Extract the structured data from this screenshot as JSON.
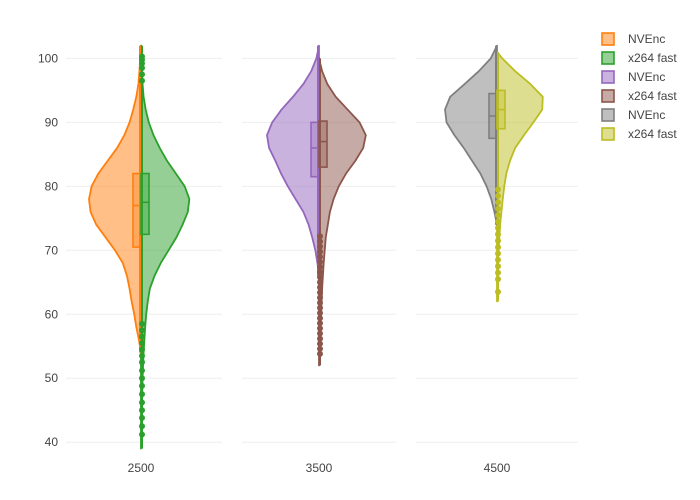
{
  "chart_data": {
    "type": "violin",
    "title": "",
    "xlabel": "",
    "ylabel": "",
    "ylim": [
      38,
      106
    ],
    "y_ticks": [
      40,
      50,
      60,
      70,
      80,
      90,
      100
    ],
    "grid": true,
    "legend_position": "top-right",
    "categories": [
      "2500",
      "3500",
      "4500"
    ],
    "series": [
      {
        "name": "NVEnc",
        "category": "2500",
        "side": "negative",
        "color": "#ff7f0e",
        "range": [
          54,
          102
        ],
        "box": {
          "q1": 70.5,
          "median": 77,
          "q3": 82
        },
        "density": [
          [
            54,
            0
          ],
          [
            56,
            0.04
          ],
          [
            58,
            0.09
          ],
          [
            60,
            0.13
          ],
          [
            62,
            0.18
          ],
          [
            64,
            0.22
          ],
          [
            66,
            0.27
          ],
          [
            68,
            0.35
          ],
          [
            70,
            0.5
          ],
          [
            72,
            0.68
          ],
          [
            74,
            0.86
          ],
          [
            76,
            0.97
          ],
          [
            78,
            1.0
          ],
          [
            80,
            0.95
          ],
          [
            82,
            0.82
          ],
          [
            84,
            0.64
          ],
          [
            86,
            0.46
          ],
          [
            88,
            0.32
          ],
          [
            90,
            0.22
          ],
          [
            92,
            0.15
          ],
          [
            94,
            0.09
          ],
          [
            96,
            0.05
          ],
          [
            98,
            0.03
          ],
          [
            100,
            0.015
          ],
          [
            102,
            0
          ]
        ],
        "outliers": []
      },
      {
        "name": "x264 fast",
        "category": "2500",
        "side": "positive",
        "color": "#2ca02c",
        "range": [
          39,
          102
        ],
        "box": {
          "q1": 72.5,
          "median": 77.5,
          "q3": 82
        },
        "density": [
          [
            39,
            0
          ],
          [
            42,
            0.01
          ],
          [
            46,
            0.02
          ],
          [
            50,
            0.03
          ],
          [
            54,
            0.05
          ],
          [
            58,
            0.08
          ],
          [
            60,
            0.1
          ],
          [
            62,
            0.13
          ],
          [
            64,
            0.17
          ],
          [
            66,
            0.26
          ],
          [
            68,
            0.38
          ],
          [
            70,
            0.53
          ],
          [
            72,
            0.68
          ],
          [
            74,
            0.8
          ],
          [
            76,
            0.9
          ],
          [
            78,
            0.93
          ],
          [
            80,
            0.84
          ],
          [
            82,
            0.67
          ],
          [
            84,
            0.5
          ],
          [
            86,
            0.36
          ],
          [
            88,
            0.24
          ],
          [
            90,
            0.15
          ],
          [
            92,
            0.09
          ],
          [
            94,
            0.05
          ],
          [
            96,
            0.03
          ],
          [
            98,
            0.015
          ],
          [
            100,
            0.008
          ],
          [
            102,
            0
          ]
        ],
        "outliers": [
          41.2,
          42.5,
          43.8,
          45,
          46.2,
          47.5,
          48.8,
          50,
          51.2,
          52.5,
          53.5,
          54.5,
          55.5,
          56.5,
          57.5,
          58.5,
          96.5,
          97.5,
          98.5,
          99.2,
          99.8,
          100.3
        ]
      },
      {
        "name": "NVEnc",
        "category": "3500",
        "side": "negative",
        "color": "#9467bd",
        "range": [
          66,
          102
        ],
        "box": {
          "q1": 81.5,
          "median": 86,
          "q3": 90
        },
        "density": [
          [
            66,
            0
          ],
          [
            68,
            0.03
          ],
          [
            70,
            0.07
          ],
          [
            72,
            0.13
          ],
          [
            74,
            0.2
          ],
          [
            76,
            0.3
          ],
          [
            78,
            0.45
          ],
          [
            80,
            0.6
          ],
          [
            82,
            0.73
          ],
          [
            84,
            0.84
          ],
          [
            86,
            0.96
          ],
          [
            88,
            1.0
          ],
          [
            90,
            0.9
          ],
          [
            92,
            0.72
          ],
          [
            94,
            0.5
          ],
          [
            96,
            0.3
          ],
          [
            98,
            0.15
          ],
          [
            100,
            0.05
          ],
          [
            102,
            0
          ]
        ],
        "outliers": []
      },
      {
        "name": "x264 fast",
        "category": "3500",
        "side": "positive",
        "color": "#8c564b",
        "range": [
          52,
          100
        ],
        "box": {
          "q1": 83,
          "median": 87,
          "q3": 90.2
        },
        "density": [
          [
            52,
            0
          ],
          [
            56,
            0.02
          ],
          [
            60,
            0.04
          ],
          [
            64,
            0.06
          ],
          [
            68,
            0.09
          ],
          [
            72,
            0.13
          ],
          [
            74,
            0.17
          ],
          [
            76,
            0.21
          ],
          [
            78,
            0.28
          ],
          [
            80,
            0.38
          ],
          [
            82,
            0.52
          ],
          [
            84,
            0.7
          ],
          [
            86,
            0.85
          ],
          [
            88,
            0.9
          ],
          [
            90,
            0.78
          ],
          [
            92,
            0.55
          ],
          [
            94,
            0.32
          ],
          [
            96,
            0.16
          ],
          [
            98,
            0.06
          ],
          [
            100,
            0
          ]
        ],
        "outliers": [
          53.8,
          54.6,
          55.4,
          56.2,
          57,
          57.8,
          58.6,
          59.4,
          60.2,
          61,
          61.8,
          62.6,
          63.4,
          64.2,
          65,
          65.8,
          66.6,
          67.4,
          68.2,
          69,
          69.8,
          70.6,
          71.4,
          72.2
        ]
      },
      {
        "name": "NVEnc",
        "category": "4500",
        "side": "negative",
        "color": "#7f7f7f",
        "range": [
          74,
          102
        ],
        "box": {
          "q1": 87.5,
          "median": 91,
          "q3": 94.5
        },
        "density": [
          [
            74,
            0
          ],
          [
            76,
            0.05
          ],
          [
            78,
            0.11
          ],
          [
            80,
            0.2
          ],
          [
            82,
            0.32
          ],
          [
            84,
            0.48
          ],
          [
            86,
            0.64
          ],
          [
            88,
            0.82
          ],
          [
            90,
            0.97
          ],
          [
            92,
            1.0
          ],
          [
            94,
            0.9
          ],
          [
            96,
            0.62
          ],
          [
            98,
            0.35
          ],
          [
            100,
            0.12
          ],
          [
            102,
            0
          ]
        ],
        "outliers": []
      },
      {
        "name": "x264 fast",
        "category": "4500",
        "side": "positive",
        "color": "#bcbd22",
        "range": [
          62,
          101
        ],
        "box": {
          "q1": 89,
          "median": 92,
          "q3": 95
        },
        "density": [
          [
            62,
            0
          ],
          [
            66,
            0.01
          ],
          [
            70,
            0.03
          ],
          [
            74,
            0.06
          ],
          [
            78,
            0.11
          ],
          [
            80,
            0.14
          ],
          [
            82,
            0.18
          ],
          [
            84,
            0.25
          ],
          [
            86,
            0.35
          ],
          [
            88,
            0.52
          ],
          [
            90,
            0.7
          ],
          [
            92,
            0.87
          ],
          [
            94,
            0.88
          ],
          [
            96,
            0.64
          ],
          [
            98,
            0.35
          ],
          [
            100,
            0.1
          ],
          [
            101,
            0
          ]
        ],
        "outliers": [
          63.5,
          65.5,
          66.5,
          67.5,
          68.5,
          69.5,
          70.5,
          71.5,
          72.5,
          73.5,
          74.5,
          75.5,
          76.5,
          77.5,
          78.5,
          79.5
        ]
      }
    ]
  }
}
